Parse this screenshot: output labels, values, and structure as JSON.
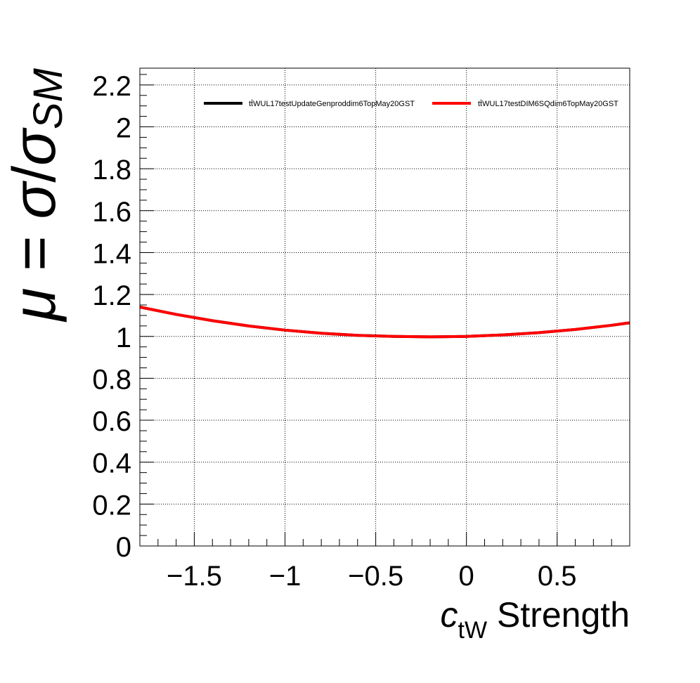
{
  "chart_data": {
    "type": "line",
    "xlabel": {
      "main": "c",
      "sub": "tW",
      "rest": " Strength"
    },
    "ylabel": {
      "mu": "μ",
      "eq": " = ",
      "sigma": "σ",
      "slash": "/",
      "sigma2": "σ",
      "sub": "SM"
    },
    "xlim": [
      -1.8,
      0.9
    ],
    "ylim": [
      0,
      2.28
    ],
    "x_ticks": [
      -1.5,
      -1,
      -0.5,
      0,
      0.5
    ],
    "x_tick_labels": [
      "−1.5",
      "−1",
      "−0.5",
      "0",
      "0.5"
    ],
    "y_ticks": [
      0,
      0.2,
      0.4,
      0.6,
      0.8,
      1,
      1.2,
      1.4,
      1.6,
      1.8,
      2,
      2.2
    ],
    "y_tick_labels": [
      "0",
      "0.2",
      "0.4",
      "0.6",
      "0.8",
      "1",
      "1.2",
      "1.4",
      "1.6",
      "1.8",
      "2",
      "2.2"
    ],
    "grid": true,
    "legend_position": "top",
    "series": [
      {
        "name": "tt̄WUL17testUpdateGenproddim6TopMay20GST",
        "color": "#000000",
        "x": [
          -1.8,
          -1.6,
          -1.4,
          -1.2,
          -1.0,
          -0.8,
          -0.6,
          -0.4,
          -0.2,
          0.0,
          0.2,
          0.4,
          0.6,
          0.8,
          0.9
        ],
        "values": [
          1.14,
          1.105,
          1.075,
          1.05,
          1.03,
          1.015,
          1.005,
          1.0,
          0.998,
          1.0,
          1.007,
          1.018,
          1.033,
          1.053,
          1.065
        ]
      },
      {
        "name": "tt̄WUL17testDIM6SQdim6TopMay20GST",
        "color": "#ff0000",
        "x": [
          -1.8,
          -1.6,
          -1.4,
          -1.2,
          -1.0,
          -0.8,
          -0.6,
          -0.4,
          -0.2,
          0.0,
          0.2,
          0.4,
          0.6,
          0.8,
          0.9
        ],
        "values": [
          1.14,
          1.105,
          1.075,
          1.05,
          1.03,
          1.015,
          1.005,
          1.0,
          0.998,
          1.0,
          1.007,
          1.018,
          1.033,
          1.053,
          1.065
        ]
      }
    ]
  }
}
